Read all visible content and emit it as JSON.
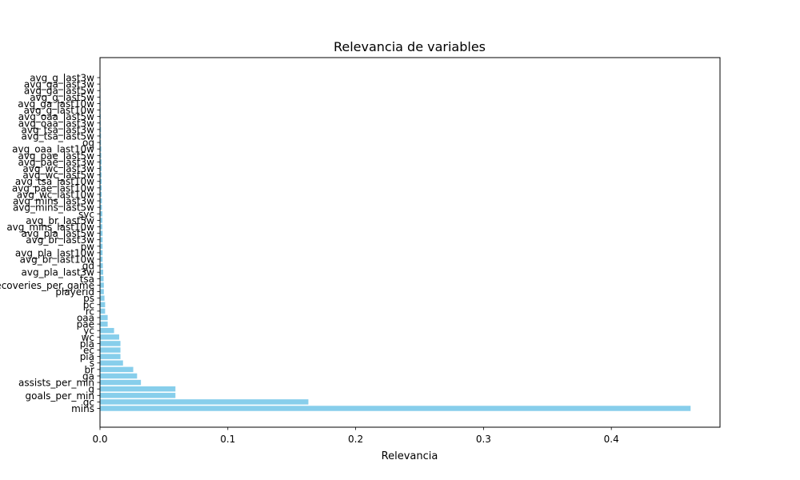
{
  "chart_data": {
    "type": "bar",
    "orientation": "horizontal",
    "title": "Relevancia de variables",
    "xlabel": "Relevancia",
    "ylabel": "",
    "xlim": [
      0,
      0.485
    ],
    "xticks": [
      0.0,
      0.1,
      0.2,
      0.3,
      0.4
    ],
    "xtick_labels": [
      "0.0",
      "0.1",
      "0.2",
      "0.3",
      "0.4"
    ],
    "grid": false,
    "legend": "none",
    "bar_color": "#87CEEB",
    "categories": [
      "mins",
      "gc",
      "goals_per_min",
      "g",
      "assists_per_min",
      "ga",
      "br",
      "s",
      "pia",
      "ec",
      "pla",
      "wc",
      "yc",
      "pae",
      "oaa",
      "rc",
      "pc",
      "ps",
      "playerid",
      "recoveries_per_game",
      "tsa",
      "avg_pla_last3w",
      "gd",
      "avg_br_last10w",
      "avg_pla_last10w",
      "pw",
      "avg_br_last3w",
      "avg_pla_last5w",
      "avg_mins_last10w",
      "avg_br_last5w",
      "syc",
      "avg_mins_last5w",
      "avg_mins_last3w",
      "avg_wc_last10w",
      "avg_pae_last10w",
      "avg_tsa_last10w",
      "avg_wc_last5w",
      "avg_wc_last3w",
      "avg_pae_last3w",
      "avg_pae_last5w",
      "avg_oaa_last10w",
      "og",
      "avg_tsa_last5w",
      "avg_tsa_last3w",
      "avg_oaa_last3w",
      "avg_oaa_last5w",
      "avg_g_last10w",
      "avg_ga_last10w",
      "avg_g_last5w",
      "avg_ga_last5w",
      "avg_ga_last3w",
      "avg_g_last3w"
    ],
    "values": [
      0.462,
      0.163,
      0.059,
      0.059,
      0.032,
      0.029,
      0.026,
      0.018,
      0.016,
      0.016,
      0.016,
      0.015,
      0.011,
      0.006,
      0.006,
      0.004,
      0.004,
      0.0035,
      0.003,
      0.003,
      0.0028,
      0.0025,
      0.0022,
      0.002,
      0.002,
      0.002,
      0.002,
      0.002,
      0.0018,
      0.0018,
      0.0018,
      0.0015,
      0.0015,
      0.0013,
      0.0013,
      0.0013,
      0.0012,
      0.0012,
      0.0012,
      0.001,
      0.001,
      0.0008,
      0.0008,
      0.0008,
      0.0006,
      0.0006,
      0.0005,
      0.0005,
      0.0004,
      0.0004,
      0.0003,
      0.0002
    ]
  }
}
